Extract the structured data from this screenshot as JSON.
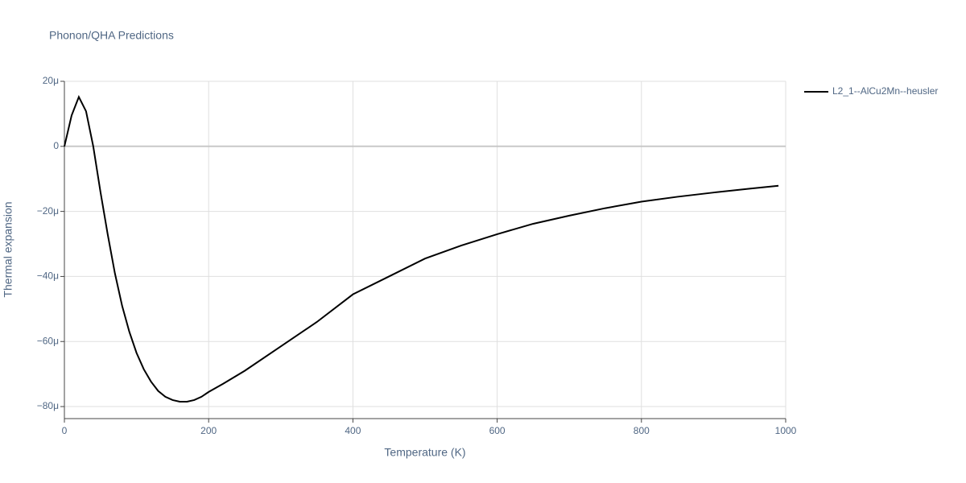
{
  "chart_data": {
    "type": "line",
    "title": "Phonon/QHA Predictions",
    "x_label": "Temperature (K)",
    "y_label": "Thermal expansion",
    "xlim": [
      0,
      1000
    ],
    "ylim": [
      -8.37e-05,
      2e-05
    ],
    "xticks": [
      0,
      200,
      400,
      600,
      800,
      1000
    ],
    "yticks": [
      {
        "value": -8e-05,
        "label": "−80μ"
      },
      {
        "value": -6e-05,
        "label": "−60μ"
      },
      {
        "value": -4e-05,
        "label": "−40μ"
      },
      {
        "value": -2e-05,
        "label": "−20μ"
      },
      0,
      {
        "value": 2e-05,
        "label": "20μ"
      }
    ],
    "grid": true,
    "legend": "right",
    "x": [
      0,
      10,
      20,
      30,
      40,
      50,
      60,
      70,
      80,
      90,
      100,
      110,
      120,
      130,
      140,
      150,
      160,
      170,
      180,
      190,
      200,
      220,
      250,
      300,
      350,
      400,
      450,
      500,
      550,
      600,
      650,
      700,
      750,
      800,
      850,
      900,
      950,
      990
    ],
    "series": [
      {
        "name": "L2_1--AlCu2Mn--heusler",
        "color": "#000000",
        "values": [
          0,
          9.5e-06,
          1.52e-05,
          1.08e-05,
          0,
          -1.4e-05,
          -2.7e-05,
          -3.9e-05,
          -4.9e-05,
          -5.7e-05,
          -6.35e-05,
          -6.85e-05,
          -7.23e-05,
          -7.52e-05,
          -7.7e-05,
          -7.8e-05,
          -7.85e-05,
          -7.85e-05,
          -7.8e-05,
          -7.7e-05,
          -7.55e-05,
          -7.3e-05,
          -6.9e-05,
          -6.15e-05,
          -5.4e-05,
          -4.55e-05,
          -4e-05,
          -3.45e-05,
          -3.05e-05,
          -2.7e-05,
          -2.38e-05,
          -2.13e-05,
          -1.9e-05,
          -1.7e-05,
          -1.55e-05,
          -1.42e-05,
          -1.3e-05,
          -1.21e-05
        ]
      }
    ]
  }
}
